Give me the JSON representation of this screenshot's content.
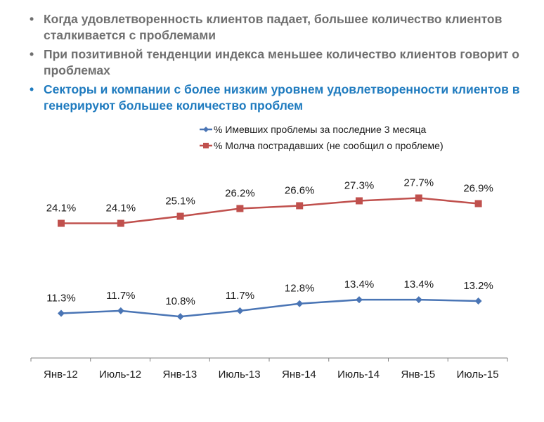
{
  "bullets": [
    {
      "text": "Когда удовлетворенность клиентов падает, большее количество клиентов сталкивается с проблемами",
      "highlight": false
    },
    {
      "text": "При позитивной тенденции индекса меньшее количество клиентов говорит о проблемах",
      "highlight": false
    },
    {
      "text": "Секторы и компании с более низким уровнем удовлетворенности клиентов в генерируют большее количество проблем",
      "highlight": true
    }
  ],
  "bullet_symbol": "•",
  "colors": {
    "bullet_text": "#6f6f6f",
    "bullet_highlight": "#1f7bbf",
    "series_blue": "#4a75b5",
    "series_red": "#c0504d",
    "axis": "#7f7f7f"
  },
  "chart_data": {
    "type": "line",
    "categories": [
      "Янв-12",
      "Июль-12",
      "Янв-13",
      "Июль-13",
      "Янв-14",
      "Июль-14",
      "Янв-15",
      "Июль-15"
    ],
    "series": [
      {
        "name": "% Имевших проблемы за последние 3 месяца",
        "values": [
          11.3,
          11.7,
          10.8,
          11.7,
          12.8,
          13.4,
          13.4,
          13.2
        ],
        "labels": [
          "11.3%",
          "11.7%",
          "10.8%",
          "11.7%",
          "12.8%",
          "13.4%",
          "13.4%",
          "13.2%"
        ],
        "color": "#4a75b5",
        "marker": "diamond"
      },
      {
        "name": "% Молча пострадавших (не сообщил о проблеме)",
        "values": [
          24.1,
          24.1,
          25.1,
          26.2,
          26.6,
          27.3,
          27.7,
          26.9
        ],
        "labels": [
          "24.1%",
          "24.1%",
          "25.1%",
          "26.2%",
          "26.6%",
          "27.3%",
          "27.7%",
          "26.9%"
        ],
        "color": "#c0504d",
        "marker": "square"
      }
    ],
    "title": "",
    "xlabel": "",
    "ylabel": "",
    "ylim": [
      0,
      30
    ],
    "grid": false,
    "legend_position": "top-right"
  }
}
